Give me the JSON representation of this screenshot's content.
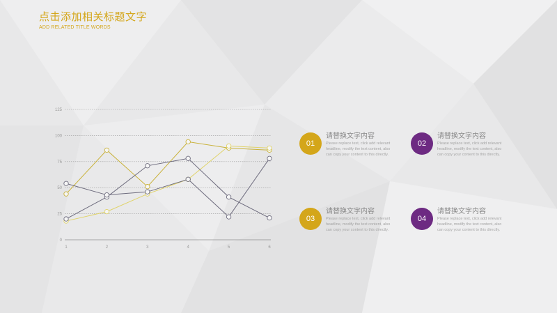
{
  "header": {
    "title": "点击添加相关标题文字",
    "subtitle": "ADD RELATED TITLE WORDS"
  },
  "colors": {
    "gold": "#d4a61a",
    "purple": "#6d2a82",
    "series_gold": "#c9b23a",
    "series_yellow": "#e0d36a",
    "series_gray": "#6e6c7e",
    "grid": "#9a9a9a"
  },
  "chart_data": {
    "type": "line",
    "x": [
      1,
      2,
      3,
      4,
      5,
      6
    ],
    "ylim": [
      0,
      125
    ],
    "yticks": [
      0,
      25,
      50,
      75,
      100,
      125
    ],
    "series": [
      {
        "values": [
          44,
          86,
          51,
          94,
          88,
          86
        ]
      },
      {
        "values": [
          18,
          27,
          44,
          58,
          90,
          88
        ]
      },
      {
        "values": [
          20,
          41,
          71,
          78,
          41,
          21
        ]
      },
      {
        "values": [
          54,
          43,
          46,
          58,
          22,
          78
        ]
      }
    ]
  },
  "items": [
    {
      "number": "01",
      "heading": "请替换文字内容",
      "desc": "Please replace text, click add relevant headline, modify the text content, also can copy your content to this directly."
    },
    {
      "number": "02",
      "heading": "请替换文字内容",
      "desc": "Please replace text, click add relevant headline, modify the text content, also can copy your content to this directly."
    },
    {
      "number": "03",
      "heading": "请替换文字内容",
      "desc": "Please replace text, click add relevant headline, modify the text content, also can copy your content to this directly."
    },
    {
      "number": "04",
      "heading": "请替换文字内容",
      "desc": "Please replace text, click add relevant headline, modify the text content, also can copy your content to this directly."
    }
  ]
}
